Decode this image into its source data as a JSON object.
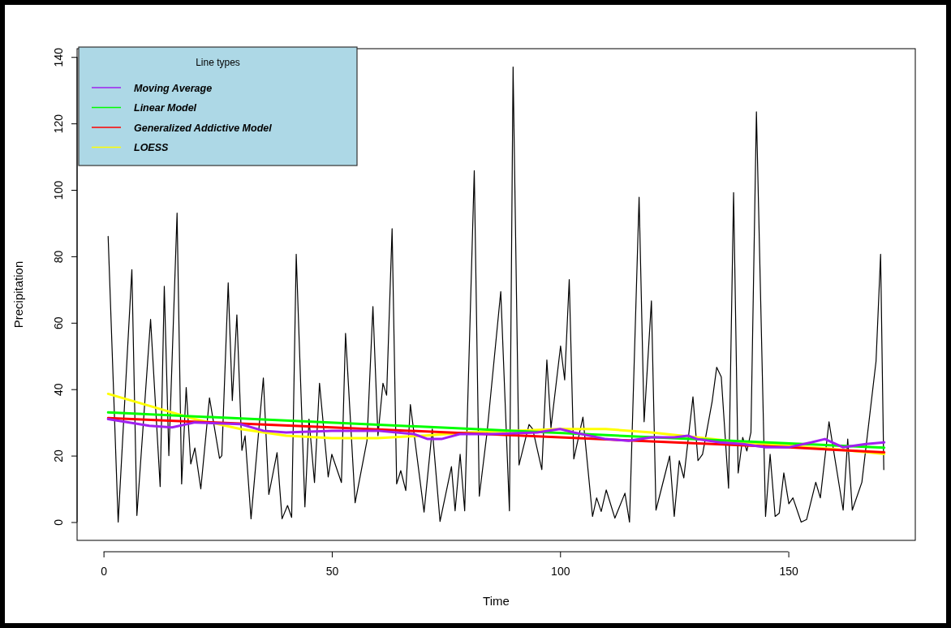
{
  "chart_data": {
    "type": "line",
    "xlabel": "Time",
    "ylabel": "Precipitation",
    "legend_title": "Line types",
    "legend": "top left",
    "grid": false,
    "marker": "none",
    "line_style": "solid",
    "xlim": [
      -5.8,
      177.8
    ],
    "xticks": [
      0,
      50,
      100,
      150
    ],
    "ylim": [
      -5.5,
      142.5
    ],
    "yticks": [
      0,
      20,
      40,
      60,
      80,
      100,
      120,
      140
    ],
    "series": [
      {
        "color": "#000000",
        "x": [
          1,
          3.2,
          6.2,
          7.3,
          10.3,
          12.4,
          13.3,
          14.3,
          16.1,
          17.1,
          18.1,
          19.1,
          20,
          21.3,
          23.2,
          25.4,
          25.9,
          27.3,
          28.2,
          29.2,
          30.3,
          31,
          32.3,
          35,
          36.2,
          38,
          39.1,
          40.3,
          41.2,
          42.2,
          44.1,
          45,
          46.2,
          47.3,
          49.2,
          50,
          52.1,
          53,
          55.1,
          57.7,
          59,
          60.1,
          61.2,
          62,
          63.2,
          64.2,
          65.1,
          66.2,
          67.2,
          70.2,
          72,
          73.7,
          76.2,
          77,
          78.1,
          79.1,
          81.2,
          82.3,
          84,
          87,
          88.9,
          89.7,
          91,
          93.2,
          94,
          96,
          97.1,
          98,
          100.1,
          101,
          102,
          103,
          105,
          107.1,
          108,
          109,
          110.1,
          112,
          114.2,
          115.2,
          117.3,
          118.4,
          120,
          121,
          124,
          125,
          126.1,
          127.1,
          129.1,
          130.2,
          131.2,
          133.3,
          134.3,
          135.3,
          136.9,
          138,
          139,
          140,
          140.9,
          141.8,
          143,
          145,
          146,
          147.1,
          148,
          149,
          150.1,
          151,
          152.8,
          154,
          156,
          157,
          158.9,
          162,
          163,
          164,
          166.1,
          169.2,
          170.2,
          170.9
        ],
        "values": [
          86,
          0,
          76,
          2,
          61,
          10.7,
          71,
          20,
          93,
          11.5,
          40.5,
          17.5,
          22.3,
          10,
          37.4,
          19.2,
          20,
          72,
          36.6,
          62.4,
          21.6,
          26,
          1,
          43.4,
          8.3,
          20.9,
          1,
          5,
          1.4,
          80.6,
          4.6,
          31,
          11.9,
          41.8,
          13.6,
          20.4,
          11.9,
          56.8,
          5.8,
          24.5,
          64.9,
          26,
          41.8,
          38.2,
          88.3,
          11.5,
          15.5,
          9.5,
          35.4,
          3,
          28,
          0.2,
          16.7,
          3.4,
          20.4,
          3.4,
          105.8,
          7.8,
          27,
          69.4,
          3.4,
          137,
          17.2,
          29.4,
          28,
          15.8,
          48.8,
          28.4,
          53,
          42.8,
          73,
          19,
          31.6,
          1.7,
          7.3,
          3.2,
          9.7,
          1.2,
          8.7,
          0,
          97.8,
          30.2,
          66.6,
          3.6,
          19.9,
          1.7,
          18.5,
          13.3,
          37.7,
          18.5,
          20.4,
          36.3,
          46.6,
          43.7,
          10.2,
          99.2,
          14.8,
          25.5,
          21.4,
          27,
          123.5,
          1.7,
          20.4,
          1.7,
          2.7,
          14.8,
          5.5,
          7.3,
          0,
          0.8,
          12,
          7.3,
          30.2,
          3.6,
          25,
          3.6,
          12,
          48.4,
          80.6,
          15.8
        ]
      },
      {
        "name": "Moving Average",
        "color": "#a020f0",
        "x": [
          1,
          10,
          15,
          20,
          30,
          35,
          40,
          50,
          60,
          68,
          71,
          74,
          78,
          85,
          95,
          100,
          103,
          110,
          115,
          120,
          125,
          128,
          130,
          135,
          140,
          145,
          150,
          155,
          158,
          162,
          167,
          171
        ],
        "values": [
          31,
          29,
          28.5,
          30,
          29.5,
          27.5,
          27,
          27.5,
          27.5,
          26.5,
          25,
          25,
          26.5,
          26.5,
          27,
          28,
          27,
          25,
          24.5,
          25.5,
          25.5,
          26,
          25,
          24,
          23.5,
          22.5,
          22.5,
          24,
          25,
          22.5,
          23.5,
          24
        ]
      },
      {
        "name": "Linear Model",
        "color": "#00ff00",
        "x": [
          1,
          171
        ],
        "values": [
          33,
          22.4
        ]
      },
      {
        "name": "Generalized Addictive Model",
        "color": "#ff0000",
        "x": [
          1,
          50,
          100,
          150,
          171
        ],
        "values": [
          31.3,
          28.5,
          25.5,
          22.5,
          21
        ]
      },
      {
        "name": "LOESS",
        "color": "#ffff00",
        "x": [
          1,
          10,
          20,
          30,
          40,
          50,
          60,
          70,
          80,
          90,
          100,
          110,
          120,
          130,
          140,
          150,
          160,
          171
        ],
        "values": [
          38.6,
          35,
          31,
          28,
          26,
          25.3,
          25.3,
          26,
          27,
          27.5,
          28,
          28,
          27,
          25.5,
          24,
          23,
          22,
          20.5
        ]
      }
    ]
  }
}
